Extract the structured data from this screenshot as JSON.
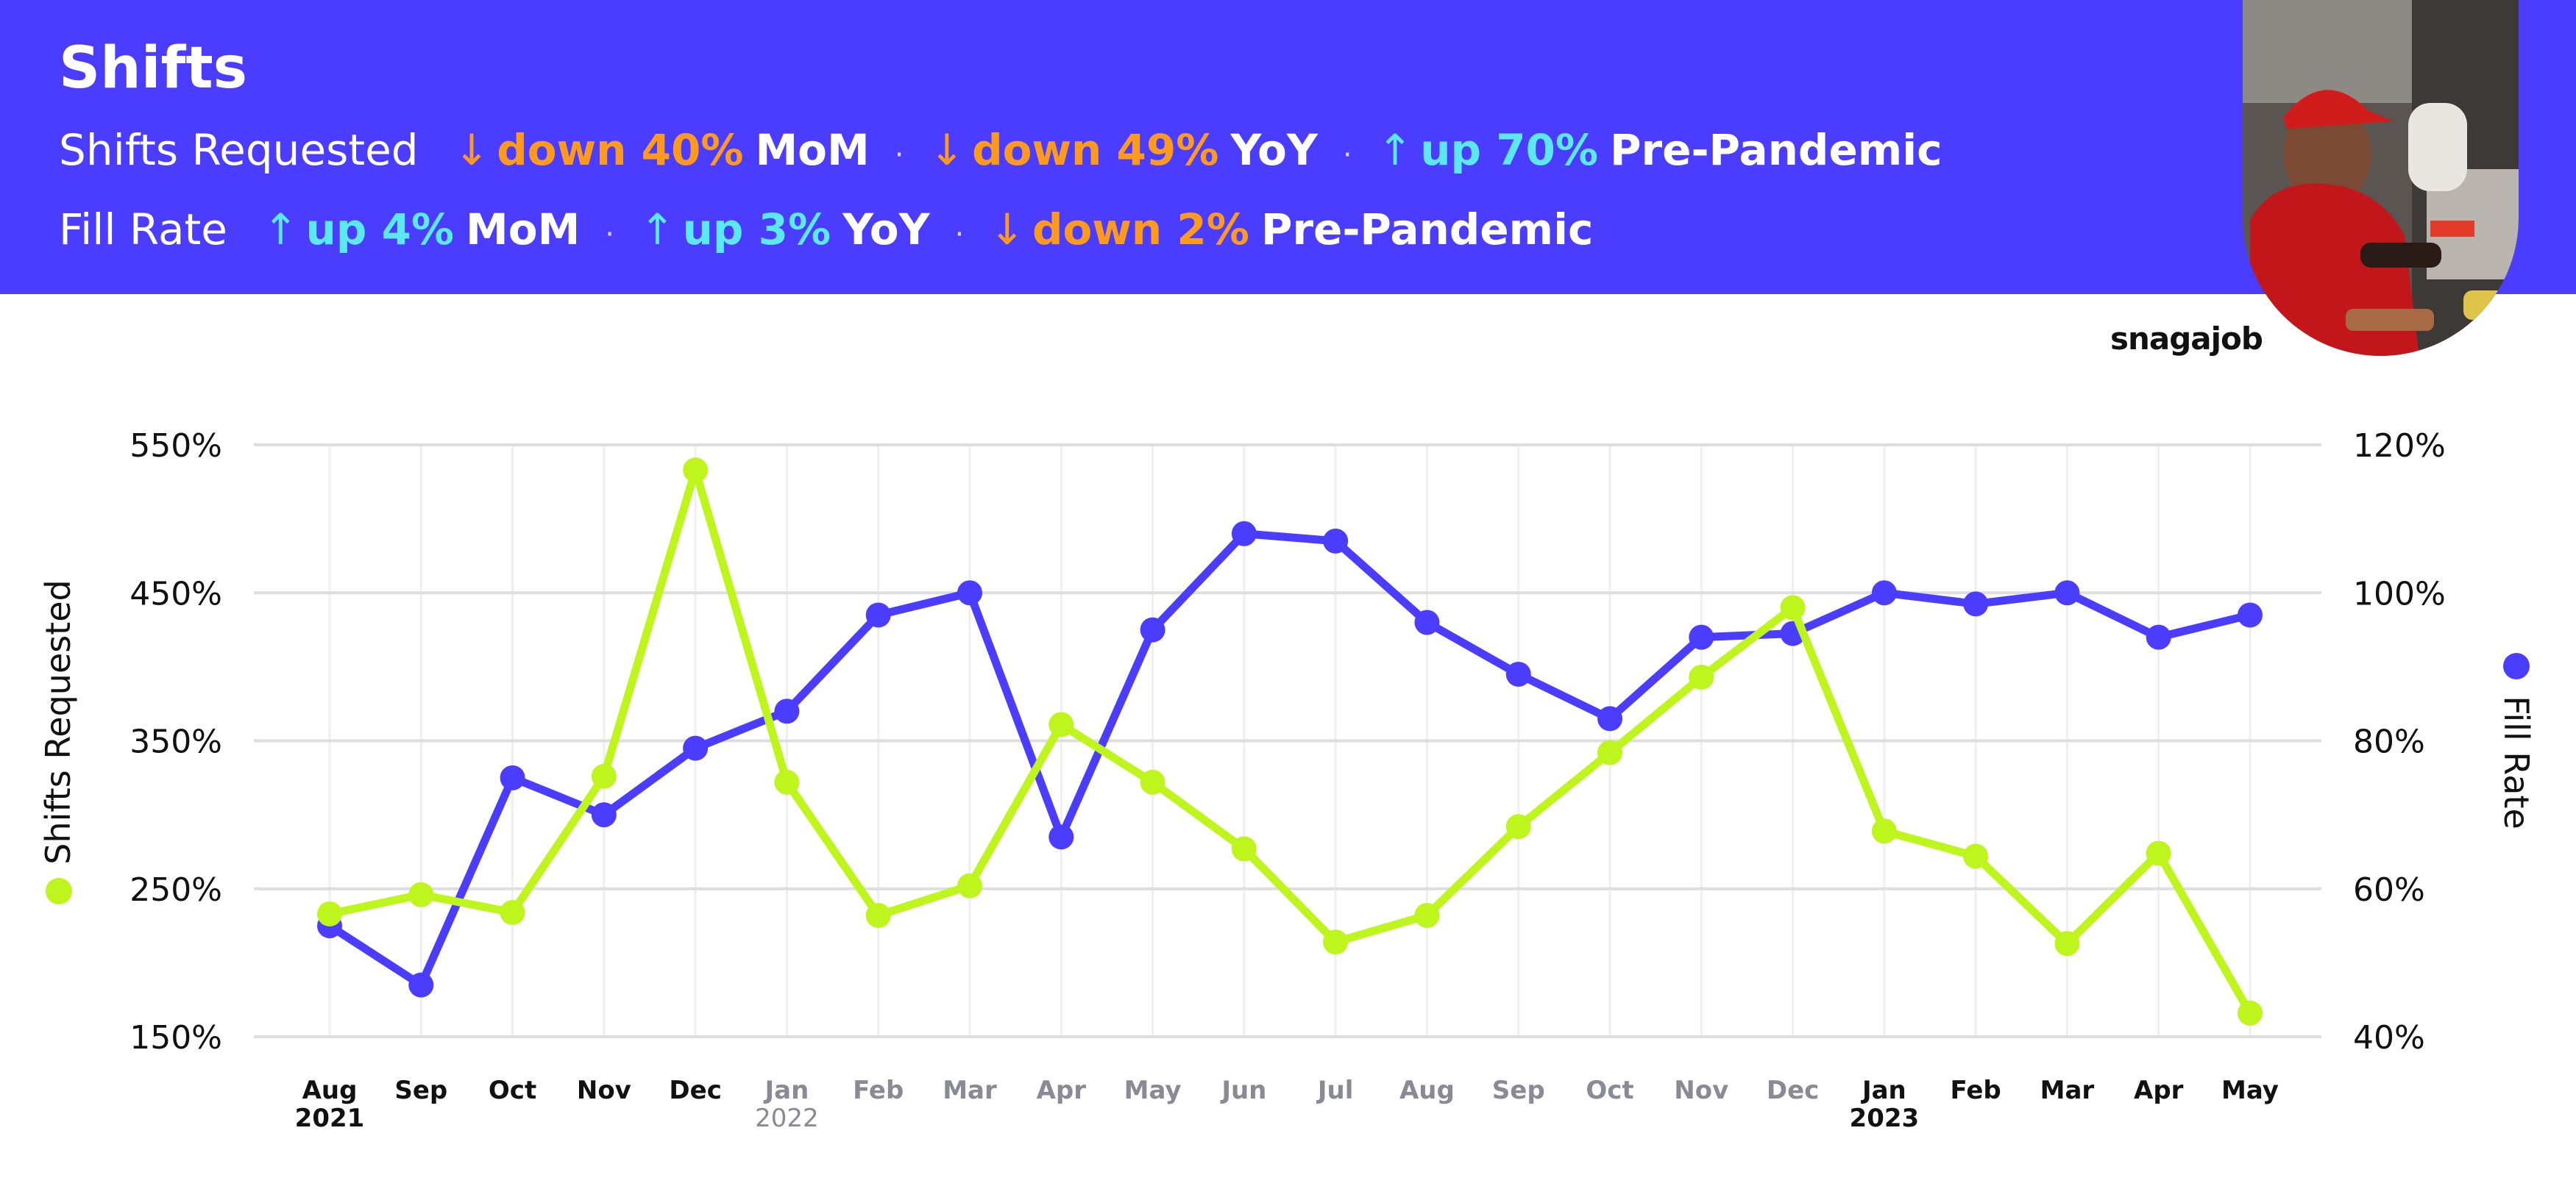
{
  "header": {
    "title": "Shifts",
    "rows": [
      {
        "label": "Shifts Requested",
        "metrics": [
          {
            "direction": "down",
            "phrase": "down 40%",
            "period": "MoM"
          },
          {
            "direction": "down",
            "phrase": "down 49%",
            "period": "YoY"
          },
          {
            "direction": "up",
            "phrase": "up 70%",
            "period": "Pre-Pandemic"
          }
        ]
      },
      {
        "label": "Fill Rate",
        "metrics": [
          {
            "direction": "up",
            "phrase": "up 4%",
            "period": "MoM"
          },
          {
            "direction": "up",
            "phrase": "up 3%",
            "period": "YoY"
          },
          {
            "direction": "down",
            "phrase": "down 2%",
            "period": "Pre-Pandemic"
          }
        ]
      }
    ],
    "arrows": {
      "up": "↑",
      "down": "↓"
    },
    "separator": "·",
    "colors": {
      "banner": "#4b3dff",
      "down": "#ff9a1f",
      "up": "#5ce8f0"
    }
  },
  "brand": {
    "logo_text": "snagajob",
    "photo": "worker-at-food-counter-photo"
  },
  "chart_data": {
    "type": "line",
    "categories": [
      "Aug",
      "Sep",
      "Oct",
      "Nov",
      "Dec",
      "Jan",
      "Feb",
      "Mar",
      "Apr",
      "May",
      "Jun",
      "Jul",
      "Aug",
      "Sep",
      "Oct",
      "Nov",
      "Dec",
      "Jan",
      "Feb",
      "Mar",
      "Apr",
      "May"
    ],
    "category_years": [
      "2021",
      "",
      "",
      "",
      "",
      "2022",
      "",
      "",
      "",
      "",
      "",
      "",
      "",
      "",
      "",
      "",
      "",
      "2023",
      "",
      "",
      "",
      ""
    ],
    "category_tone": [
      "dark",
      "dark",
      "dark",
      "dark",
      "dark",
      "grey",
      "grey",
      "grey",
      "grey",
      "grey",
      "grey",
      "grey",
      "grey",
      "grey",
      "grey",
      "grey",
      "grey",
      "dark",
      "dark",
      "dark",
      "dark",
      "dark"
    ],
    "series": [
      {
        "name": "Shifts Requested",
        "axis": "left",
        "color": "#bdf51c",
        "values": [
          233,
          246,
          234,
          326,
          533,
          322,
          232,
          252,
          361,
          322,
          277,
          214,
          232,
          292,
          342,
          393,
          440,
          289,
          272,
          213,
          274,
          166
        ]
      },
      {
        "name": "Fill Rate",
        "axis": "right",
        "color": "#4b3dff",
        "values": [
          55,
          47,
          75,
          70,
          79,
          84,
          97,
          100,
          67,
          95,
          108,
          107,
          96,
          89,
          83,
          94,
          94.5,
          100,
          98.5,
          100,
          94,
          97
        ]
      }
    ],
    "y_left": {
      "label": "Shifts Requested",
      "ticks": [
        "150%",
        "250%",
        "350%",
        "450%",
        "550%"
      ],
      "tick_values": [
        150,
        250,
        350,
        450,
        550
      ],
      "lim": [
        150,
        550
      ]
    },
    "y_right": {
      "label": "Fill Rate",
      "ticks": [
        "40%",
        "60%",
        "80%",
        "100%",
        "120%"
      ],
      "tick_values": [
        40,
        60,
        80,
        100,
        120
      ],
      "lim": [
        40,
        120
      ]
    },
    "grid": true
  }
}
